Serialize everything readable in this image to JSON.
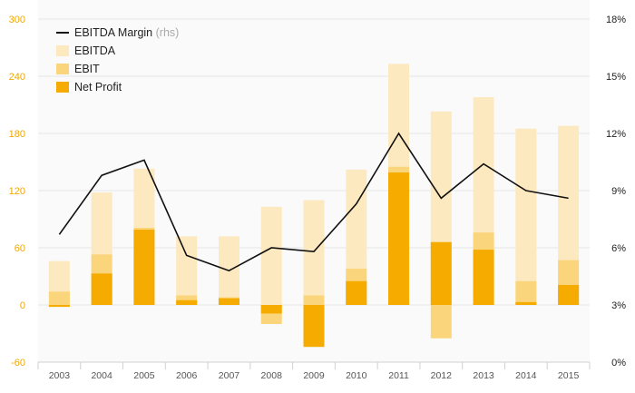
{
  "chart_data": {
    "type": "bar",
    "categories": [
      "2003",
      "2004",
      "2005",
      "2006",
      "2007",
      "2008",
      "2009",
      "2010",
      "2011",
      "2012",
      "2013",
      "2014",
      "2015"
    ],
    "series": [
      {
        "name": "EBITDA",
        "kind": "bar",
        "axis": "left",
        "color": "#fde9bf",
        "values": [
          46,
          118,
          143,
          72,
          72,
          103,
          110,
          142,
          253,
          203,
          218,
          185,
          188
        ]
      },
      {
        "name": "EBIT",
        "kind": "bar",
        "axis": "left",
        "color": "#fbd57b",
        "values": [
          14,
          53,
          81,
          10,
          8,
          -20,
          10,
          38,
          145,
          -35,
          76,
          25,
          47
        ]
      },
      {
        "name": "Net Profit",
        "kind": "bar",
        "axis": "left",
        "color": "#f5ab00",
        "values": [
          -2,
          33,
          79,
          5,
          7,
          -9,
          -44,
          25,
          139,
          66,
          58,
          3,
          21
        ]
      },
      {
        "name": "EBITDA Margin",
        "legend_suffix": "(rhs)",
        "kind": "line",
        "axis": "right",
        "color": "#111111",
        "values": [
          6.7,
          9.8,
          10.6,
          5.6,
          4.8,
          6.0,
          5.8,
          8.3,
          12.0,
          8.6,
          10.4,
          9.0,
          8.6
        ]
      }
    ],
    "y_left": {
      "min": -60,
      "max": 300,
      "ticks": [
        -60,
        0,
        60,
        120,
        180,
        240,
        300
      ],
      "color": "#f0a800"
    },
    "y_right": {
      "min": 0,
      "max": 18,
      "ticks": [
        "0%",
        "3%",
        "6%",
        "9%",
        "12%",
        "15%",
        "18%"
      ]
    },
    "grid": true,
    "legend_position": "top-left"
  }
}
